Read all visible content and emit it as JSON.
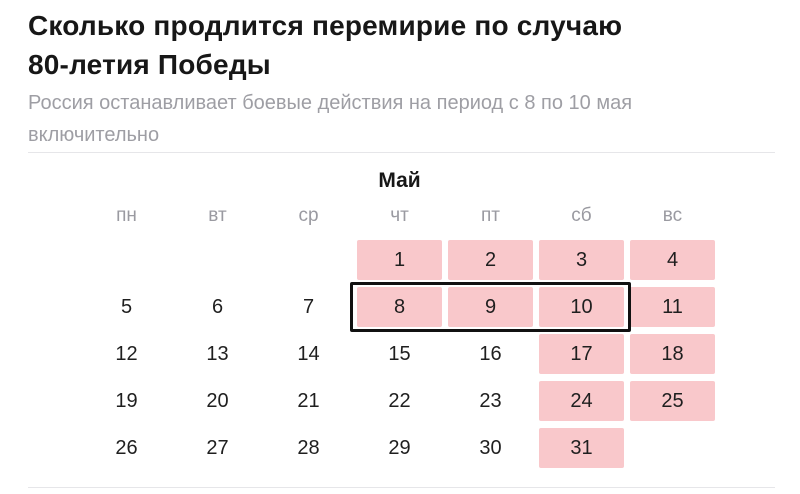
{
  "header": {
    "title_lines": [
      "Сколько продлится перемирие по случаю",
      "80-летия Победы"
    ],
    "subtitle_lines": [
      "Россия останавливает боевые действия на период с 8 по 10 мая",
      "включительно"
    ]
  },
  "calendar": {
    "month": "Май",
    "weekdays": [
      "пн",
      "вт",
      "ср",
      "чт",
      "пт",
      "сб",
      "вс"
    ],
    "highlighted_days": [
      1,
      2,
      3,
      4,
      8,
      9,
      10,
      11,
      17,
      18,
      24,
      25,
      31
    ],
    "truce_days": [
      8,
      9,
      10
    ],
    "days": [
      {
        "label": "",
        "highlighted": false
      },
      {
        "label": "",
        "highlighted": false
      },
      {
        "label": "",
        "highlighted": false
      },
      {
        "label": "1",
        "highlighted": true
      },
      {
        "label": "2",
        "highlighted": true
      },
      {
        "label": "3",
        "highlighted": true
      },
      {
        "label": "4",
        "highlighted": true
      },
      {
        "label": "5",
        "highlighted": false
      },
      {
        "label": "6",
        "highlighted": false
      },
      {
        "label": "7",
        "highlighted": false
      },
      {
        "label": "8",
        "highlighted": true,
        "truce": true
      },
      {
        "label": "9",
        "highlighted": true,
        "truce": true
      },
      {
        "label": "10",
        "highlighted": true,
        "truce": true
      },
      {
        "label": "11",
        "highlighted": true
      },
      {
        "label": "12",
        "highlighted": false
      },
      {
        "label": "13",
        "highlighted": false
      },
      {
        "label": "14",
        "highlighted": false
      },
      {
        "label": "15",
        "highlighted": false
      },
      {
        "label": "16",
        "highlighted": false
      },
      {
        "label": "17",
        "highlighted": true
      },
      {
        "label": "18",
        "highlighted": true
      },
      {
        "label": "19",
        "highlighted": false
      },
      {
        "label": "20",
        "highlighted": false
      },
      {
        "label": "21",
        "highlighted": false
      },
      {
        "label": "22",
        "highlighted": false
      },
      {
        "label": "23",
        "highlighted": false
      },
      {
        "label": "24",
        "highlighted": true
      },
      {
        "label": "25",
        "highlighted": true
      },
      {
        "label": "26",
        "highlighted": false
      },
      {
        "label": "27",
        "highlighted": false
      },
      {
        "label": "28",
        "highlighted": false
      },
      {
        "label": "29",
        "highlighted": false
      },
      {
        "label": "30",
        "highlighted": false
      },
      {
        "label": "31",
        "highlighted": true
      },
      {
        "label": "",
        "highlighted": false
      }
    ]
  },
  "colors": {
    "highlight": "#f9c8cb",
    "truce_outline": "#111111"
  }
}
